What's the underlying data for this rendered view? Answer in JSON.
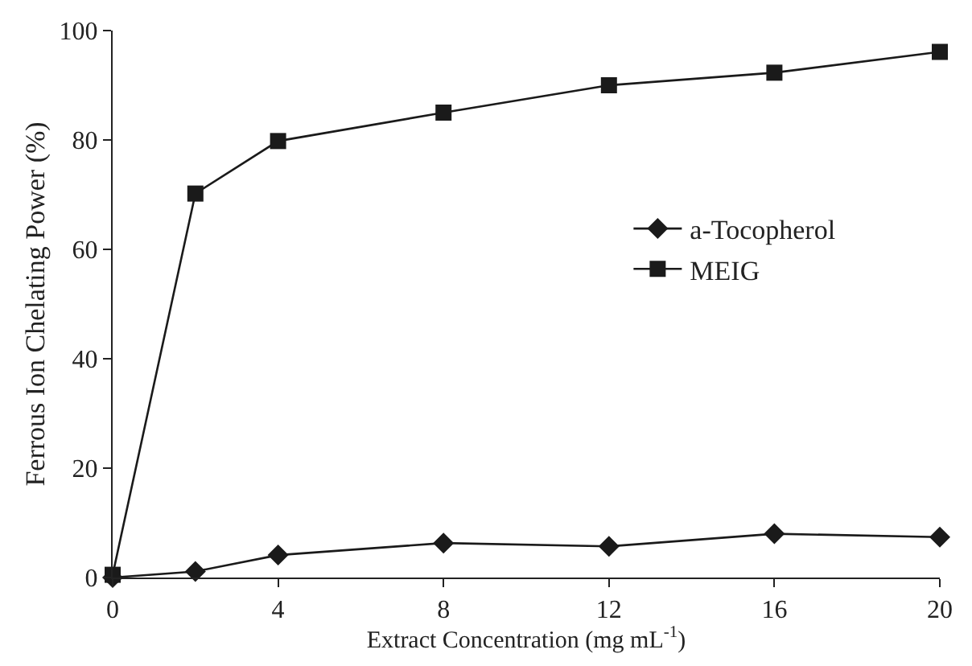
{
  "chart_data": {
    "type": "line",
    "xlabel": "Extract Concentration (mg mL$^{-1}$)",
    "ylabel": "Ferrous Ion Chelating Power (%)",
    "x": [
      0,
      2,
      4,
      8,
      12,
      16,
      20
    ],
    "series": [
      {
        "name": "a-Tocopherol",
        "color": "#1a1a1a",
        "marker": "diamond",
        "values": [
          0,
          1.1,
          4.1,
          6.3,
          5.7,
          8.0,
          7.4
        ]
      },
      {
        "name": "MEIG",
        "color": "#1a1a1a",
        "marker": "square",
        "values": [
          0.5,
          70.2,
          79.8,
          85.0,
          90.0,
          92.3,
          96.1
        ]
      }
    ],
    "xlim": [
      0,
      20
    ],
    "xticks": [
      0,
      4,
      8,
      12,
      16,
      20
    ],
    "ylim": [
      0,
      100
    ],
    "yticks": [
      0,
      20,
      40,
      60,
      80,
      100
    ],
    "legend": "right",
    "line_style": "solid"
  }
}
